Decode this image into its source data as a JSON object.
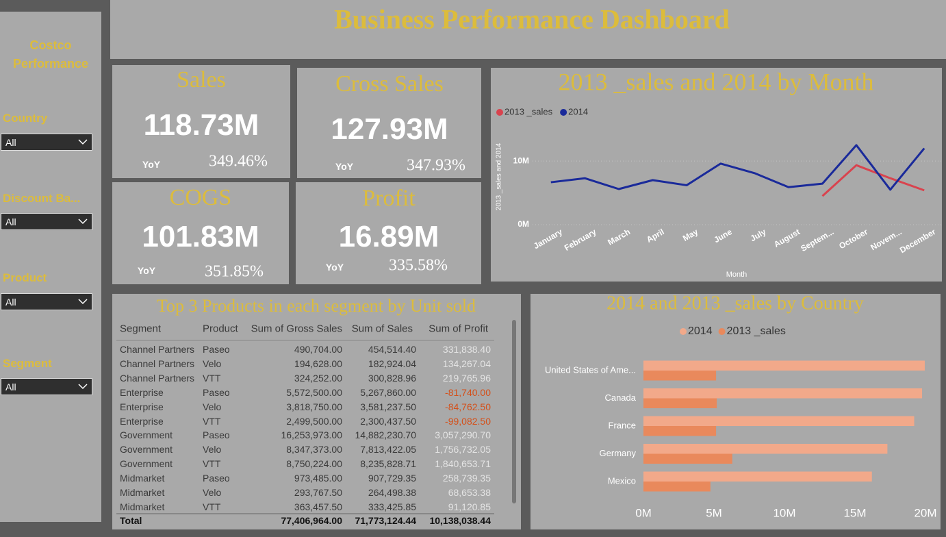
{
  "sidebar": {
    "title": "Costco Performance",
    "slicers": [
      {
        "label": "Country",
        "value": "All"
      },
      {
        "label": "Discount Ba...",
        "value": "All"
      },
      {
        "label": "Product",
        "value": "All"
      },
      {
        "label": "Segment",
        "value": "All"
      }
    ]
  },
  "header": {
    "title": "Business Performance Dashboard"
  },
  "kpis": [
    {
      "title": "Sales",
      "value": "118.73M",
      "yoy_label": "YoY",
      "yoy": "349.46%"
    },
    {
      "title": "Cross Sales",
      "value": "127.93M",
      "yoy_label": "YoY",
      "yoy": "347.93%"
    },
    {
      "title": "COGS",
      "value": "101.83M",
      "yoy_label": "YoY",
      "yoy": "351.85%"
    },
    {
      "title": "Profit",
      "value": "16.89M",
      "yoy_label": "YoY",
      "yoy": "335.58%"
    }
  ],
  "table": {
    "title": "Top 3 Products in each segment by Unit sold",
    "columns": [
      "Segment",
      "Product",
      "Sum of Gross Sales",
      "Sum of Sales",
      "Sum of Profit"
    ],
    "rows": [
      [
        "Channel Partners",
        "Paseo",
        "490,704.00",
        "454,514.40",
        "331,838.40"
      ],
      [
        "Channel Partners",
        "Velo",
        "194,628.00",
        "182,924.04",
        "134,267.04"
      ],
      [
        "Channel Partners",
        "VTT",
        "324,252.00",
        "300,828.96",
        "219,765.96"
      ],
      [
        "Enterprise",
        "Paseo",
        "5,572,500.00",
        "5,267,860.00",
        "-81,740.00"
      ],
      [
        "Enterprise",
        "Velo",
        "3,818,750.00",
        "3,581,237.50",
        "-84,762.50"
      ],
      [
        "Enterprise",
        "VTT",
        "2,499,500.00",
        "2,300,437.50",
        "-99,082.50"
      ],
      [
        "Government",
        "Paseo",
        "16,253,973.00",
        "14,882,230.70",
        "3,057,290.70"
      ],
      [
        "Government",
        "Velo",
        "8,347,373.00",
        "7,813,422.05",
        "1,756,732.05"
      ],
      [
        "Government",
        "VTT",
        "8,750,224.00",
        "8,235,828.71",
        "1,840,653.71"
      ],
      [
        "Midmarket",
        "Paseo",
        "973,485.00",
        "907,729.35",
        "258,739.35"
      ],
      [
        "Midmarket",
        "Velo",
        "293,767.50",
        "264,498.38",
        "68,653.38"
      ],
      [
        "Midmarket",
        "VTT",
        "363,457.50",
        "333,425.85",
        "91,120.85"
      ]
    ],
    "total": [
      "Total",
      "77,406,964.00",
      "71,773,124.44",
      "10,138,038.44"
    ]
  },
  "chart_data": [
    {
      "type": "line",
      "title": "2013 _sales and 2014 by Month",
      "x_label": "Month",
      "y_label": "2013 _sales and 2014",
      "categories": [
        "January",
        "February",
        "March",
        "April",
        "May",
        "June",
        "July",
        "August",
        "Septem...",
        "October",
        "Novem...",
        "December"
      ],
      "series": [
        {
          "name": "2013 _sales",
          "color": "#d9434e",
          "values": [
            null,
            null,
            null,
            null,
            null,
            null,
            null,
            null,
            4.5,
            9.35,
            7.3,
            5.4
          ]
        },
        {
          "name": "2014",
          "color": "#1a2a9a",
          "values": [
            6.67,
            7.3,
            5.6,
            7.0,
            6.2,
            9.6,
            8.1,
            5.9,
            6.45,
            12.5,
            5.5,
            12.0
          ]
        }
      ],
      "ylim": [
        0,
        14
      ],
      "yticks": [
        {
          "value": 0,
          "label": "0M"
        },
        {
          "value": 10,
          "label": "10M"
        }
      ],
      "grid": true
    },
    {
      "type": "hbar",
      "title": "2014 and 2013 _sales by Country",
      "categories": [
        "United States of Ame...",
        "Canada",
        "France",
        "Germany",
        "Mexico"
      ],
      "series": [
        {
          "name": "2014",
          "color": "#f2a98a",
          "values": [
            19.95,
            19.76,
            19.2,
            17.3,
            16.2
          ]
        },
        {
          "name": "2013 _sales",
          "color": "#e9895c",
          "values": [
            5.15,
            5.2,
            5.15,
            6.3,
            4.75
          ]
        }
      ],
      "xlim": [
        0,
        20
      ],
      "xticks": [
        {
          "value": 0,
          "label": "0M"
        },
        {
          "value": 5,
          "label": "5M"
        },
        {
          "value": 10,
          "label": "10M"
        },
        {
          "value": 15,
          "label": "15M"
        },
        {
          "value": 20,
          "label": "20M"
        }
      ]
    }
  ]
}
